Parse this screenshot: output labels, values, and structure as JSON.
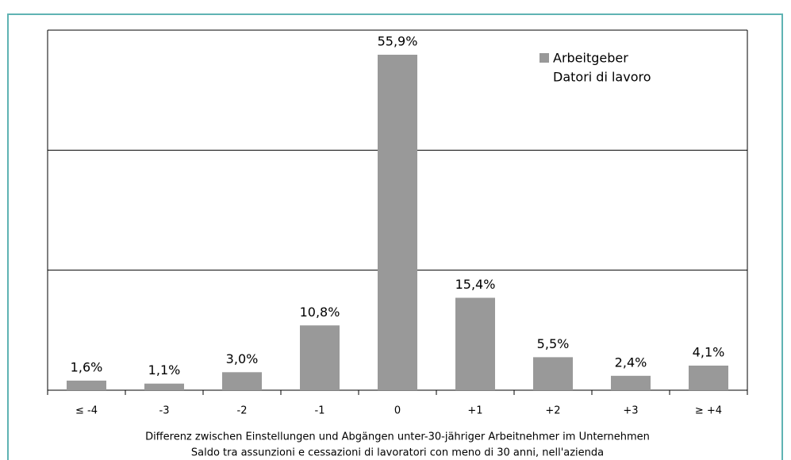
{
  "chart_data": {
    "type": "bar",
    "categories": [
      "≤ -4",
      "-3",
      "-2",
      "-1",
      "0",
      "+1",
      "+2",
      "+3",
      "≥ +4"
    ],
    "series": [
      {
        "name": [
          "Arbeitgeber",
          "Datori di lavoro"
        ],
        "color": "#999999",
        "values": [
          1.6,
          1.1,
          3.0,
          10.8,
          55.9,
          15.4,
          5.5,
          2.4,
          4.1
        ],
        "value_labels": [
          "1,6%",
          "1,1%",
          "3,0%",
          "10,8%",
          "55,9%",
          "15,4%",
          "5,5%",
          "2,4%",
          "4,1%"
        ]
      }
    ],
    "xlabel": [
      "Differenz zwischen Einstellungen und Abgängen unter-30-jähriger Arbeitnehmer im Unternehmen",
      "Saldo tra assunzioni e cessazioni di lavoratori con meno di 30 anni, nell'azienda"
    ],
    "ylim": [
      0,
      60
    ],
    "yticks": [
      0,
      20,
      40,
      60
    ],
    "grid": true,
    "legend": "top-right"
  }
}
